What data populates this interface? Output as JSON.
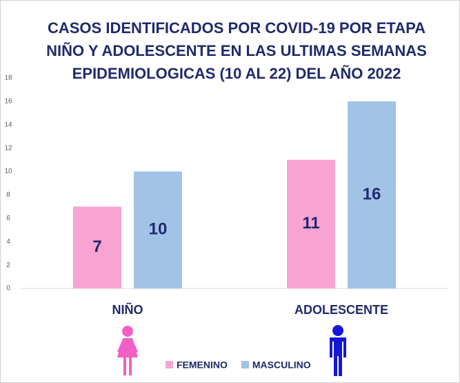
{
  "chart_data": {
    "type": "bar",
    "title": [
      "CASOS IDENTIFICADOS POR COVID-19 POR ETAPA",
      "NIÑO Y ADOLESCENTE EN LAS ULTIMAS SEMANAS",
      "EPIDEMIOLOGICAS (10 AL 22) DEL AÑO 2022"
    ],
    "categories": [
      "NIÑO",
      "ADOLESCENTE"
    ],
    "series": [
      {
        "name": "FEMENINO",
        "color": "#f9a3d2",
        "values": [
          7,
          11
        ]
      },
      {
        "name": "MASCULINO",
        "color": "#a3c3e6",
        "values": [
          10,
          16
        ]
      }
    ],
    "ylim": [
      0,
      18
    ],
    "yticks": [
      0,
      2,
      4,
      6,
      8,
      10,
      12,
      14,
      16,
      18
    ],
    "grid": false,
    "legend": "bottom"
  }
}
